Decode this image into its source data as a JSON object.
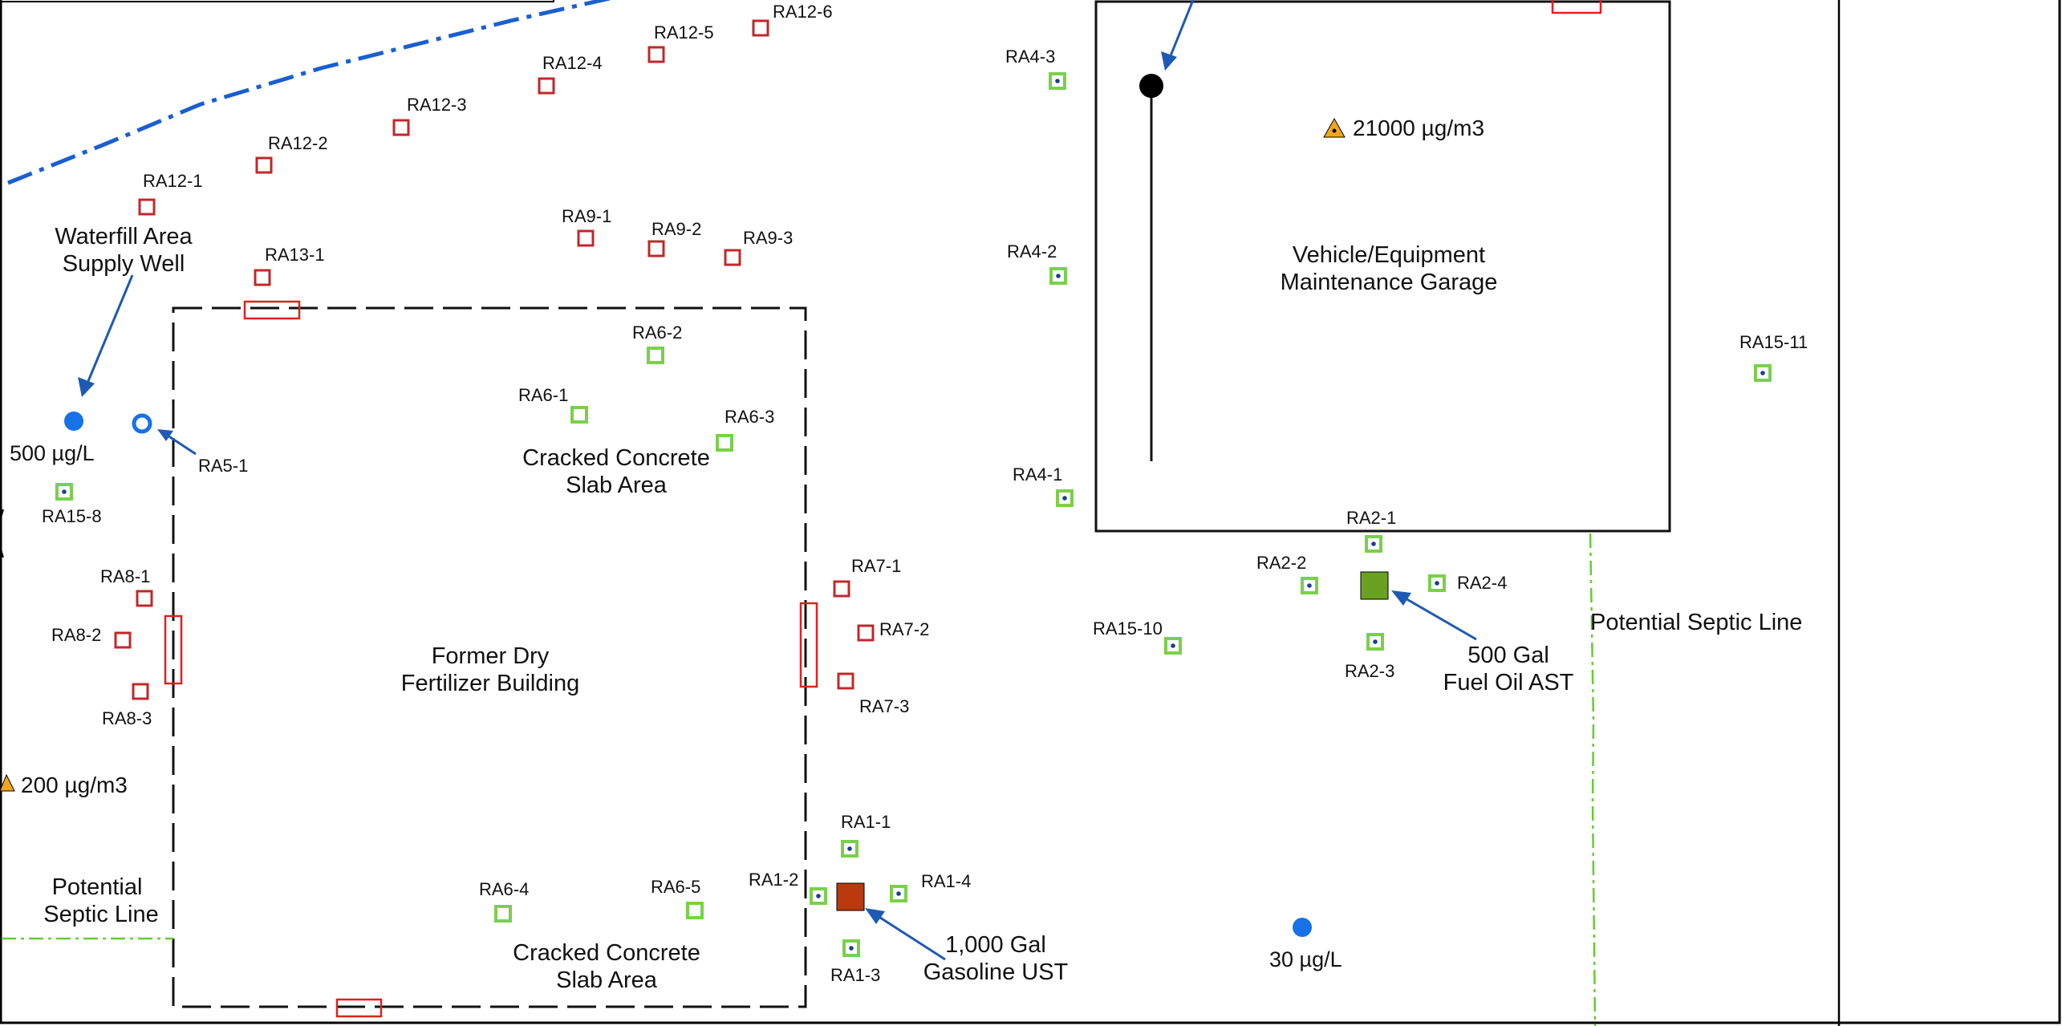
{
  "colors": {
    "sample_red": "#c0282b",
    "sample_green": "#7ad04a",
    "sample_center": "#1a3f8f",
    "water_blue": "#1672e6",
    "arrow_blue": "#1d5ab4",
    "septic_green": "#66cc33",
    "boundary_blue": "#1a5fd0",
    "footprint_red": "#e02020",
    "ust_brown": "#b83a0e",
    "ast_green": "#6aa121",
    "vapor_orange": "#f3a51c"
  },
  "samples_red": [
    {
      "id": "ra12-6",
      "label": "RA12-6"
    },
    {
      "id": "ra12-5",
      "label": "RA12-5"
    },
    {
      "id": "ra12-4",
      "label": "RA12-4"
    },
    {
      "id": "ra12-3",
      "label": "RA12-3"
    },
    {
      "id": "ra12-2",
      "label": "RA12-2"
    },
    {
      "id": "ra12-1",
      "label": "RA12-1"
    },
    {
      "id": "ra13-1",
      "label": "RA13-1"
    },
    {
      "id": "ra9-1",
      "label": "RA9-1"
    },
    {
      "id": "ra9-2",
      "label": "RA9-2"
    },
    {
      "id": "ra9-3",
      "label": "RA9-3"
    },
    {
      "id": "ra8-1",
      "label": "RA8-1"
    },
    {
      "id": "ra8-2",
      "label": "RA8-2"
    },
    {
      "id": "ra8-3",
      "label": "RA8-3"
    },
    {
      "id": "ra7-1",
      "label": "RA7-1"
    },
    {
      "id": "ra7-2",
      "label": "RA7-2"
    },
    {
      "id": "ra7-3",
      "label": "RA7-3"
    }
  ],
  "samples_green": [
    {
      "id": "ra6-1",
      "label": "RA6-1"
    },
    {
      "id": "ra6-2",
      "label": "RA6-2"
    },
    {
      "id": "ra6-3",
      "label": "RA6-3"
    },
    {
      "id": "ra6-4",
      "label": "RA6-4"
    },
    {
      "id": "ra6-5",
      "label": "RA6-5"
    }
  ],
  "samples_green_dot": [
    {
      "id": "ra4-3",
      "label": "RA4-3"
    },
    {
      "id": "ra4-2",
      "label": "RA4-2"
    },
    {
      "id": "ra4-1",
      "label": "RA4-1"
    },
    {
      "id": "ra15-11",
      "label": "RA15-11"
    },
    {
      "id": "ra15-8",
      "label": "RA15-8"
    },
    {
      "id": "ra15-10",
      "label": "RA15-10"
    },
    {
      "id": "ra2-1",
      "label": "RA2-1"
    },
    {
      "id": "ra2-2",
      "label": "RA2-2"
    },
    {
      "id": "ra2-3",
      "label": "RA2-3"
    },
    {
      "id": "ra2-4",
      "label": "RA2-4"
    },
    {
      "id": "ra1-1",
      "label": "RA1-1"
    },
    {
      "id": "ra1-2",
      "label": "RA1-2"
    },
    {
      "id": "ra1-3",
      "label": "RA1-3"
    },
    {
      "id": "ra1-4",
      "label": "RA1-4"
    }
  ],
  "monitoring_well": {
    "label": "RA5-1"
  },
  "water_results": [
    {
      "id": "supply-well",
      "value": "500 µg/L"
    },
    {
      "id": "south-well",
      "value": "30 µg/L"
    }
  ],
  "vapor_results": [
    {
      "id": "garage",
      "value": "21000 µg/m3"
    },
    {
      "id": "west",
      "value": "200 µg/m3"
    }
  ],
  "buildings": {
    "fertilizer": {
      "line1": "Former Dry",
      "line2": "Fertilizer Building"
    },
    "garage": {
      "line1": "Vehicle/Equipment",
      "line2": "Maintenance Garage"
    }
  },
  "areas": {
    "slab_north": {
      "line1": "Cracked Concrete",
      "line2": "Slab Area"
    },
    "slab_south": {
      "line1": "Cracked Concrete",
      "line2": "Slab Area"
    }
  },
  "features": {
    "supply_well": {
      "line1": "Waterfill Area",
      "line2": "Supply Well"
    },
    "ust": {
      "line1": "1,000 Gal",
      "line2": "Gasoline UST"
    },
    "ast": {
      "line1": "500 Gal",
      "line2": "Fuel Oil AST"
    },
    "septic_west": {
      "line1": "Potential",
      "line2": "Septic Line"
    },
    "septic_east": {
      "line1": "Potential Septic Line"
    }
  }
}
